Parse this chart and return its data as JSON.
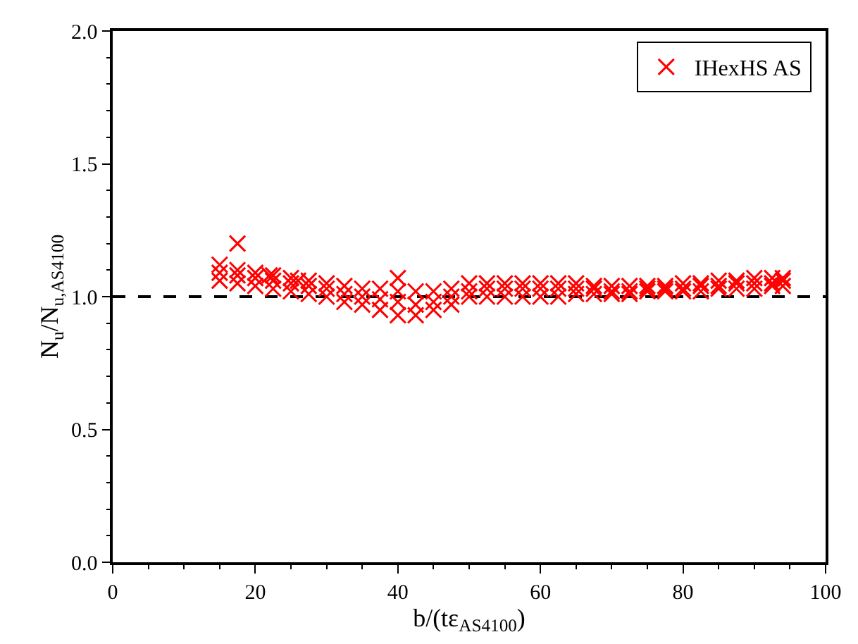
{
  "chart_data": {
    "type": "scatter",
    "xlabel": "b/(tε$_{AS4100}$)",
    "ylabel": "N$_{u}$/N$_{u,AS4100}$",
    "xlim": [
      0,
      100
    ],
    "xticks": [
      0,
      20,
      40,
      60,
      80,
      100
    ],
    "ylim": [
      0,
      2
    ],
    "yticks": [
      {
        "value": 0,
        "label": "0.0"
      },
      {
        "value": 0.5,
        "label": "0.5"
      },
      {
        "value": 1,
        "label": "1.0"
      },
      {
        "value": 1.5,
        "label": "1.5"
      },
      {
        "value": 2,
        "label": "2.0"
      }
    ],
    "grid": false,
    "legend": "top right",
    "marker": "cross",
    "ref_lines": [
      {
        "axis": "y",
        "value": 1,
        "color": "#000000",
        "line_style": "dashed"
      }
    ],
    "series": [
      {
        "name": "IHexHS AS",
        "color": "#ff0000",
        "x": [
          15,
          17.5,
          20,
          22.5,
          25,
          27.5,
          30,
          32.5,
          35,
          37.5,
          40,
          42.5,
          45,
          47.5,
          50,
          52.5,
          55,
          57.5,
          60,
          62.5,
          65,
          67.5,
          70,
          72.5,
          75,
          77.5,
          80,
          82.5,
          85,
          87.5,
          90,
          92.5,
          94,
          15,
          17.5,
          20,
          22.5,
          25,
          27.5,
          30,
          32.5,
          35,
          37.5,
          40,
          42.5,
          45,
          47.5,
          50,
          52.5,
          55,
          57.5,
          60,
          62.5,
          65,
          67.5,
          70,
          72.5,
          75,
          77.5,
          80,
          82.5,
          85,
          87.5,
          90,
          92.5,
          94,
          15,
          17.5,
          20,
          22.5,
          25,
          27.5,
          30,
          32.5,
          35,
          37.5,
          40,
          42.5,
          45,
          47.5,
          50,
          52.5,
          55,
          57.5,
          60,
          62.5,
          65,
          67.5,
          70,
          72.5,
          75,
          77.5,
          80,
          82.5,
          85,
          87.5,
          90,
          92.5,
          94,
          17.5,
          40,
          22,
          26
        ],
        "values": [
          1.12,
          1.1,
          1.09,
          1.08,
          1.07,
          1.06,
          1.05,
          1.04,
          1.03,
          1.03,
          1.02,
          1.02,
          1.02,
          1.03,
          1.05,
          1.05,
          1.05,
          1.05,
          1.05,
          1.05,
          1.05,
          1.04,
          1.04,
          1.04,
          1.04,
          1.04,
          1.05,
          1.05,
          1.06,
          1.06,
          1.07,
          1.07,
          1.07,
          1.06,
          1.05,
          1.04,
          1.03,
          1.02,
          1.01,
          1.0,
          0.98,
          0.97,
          0.95,
          0.93,
          0.93,
          0.95,
          0.97,
          1.0,
          1.0,
          1.0,
          1.0,
          1.0,
          1.0,
          1.01,
          1.01,
          1.01,
          1.01,
          1.02,
          1.02,
          1.02,
          1.02,
          1.03,
          1.03,
          1.03,
          1.04,
          1.04,
          1.09,
          1.08,
          1.07,
          1.06,
          1.05,
          1.04,
          1.03,
          1.01,
          1.0,
          0.99,
          0.98,
          0.97,
          0.98,
          1.0,
          1.02,
          1.03,
          1.03,
          1.03,
          1.03,
          1.03,
          1.03,
          1.03,
          1.02,
          1.02,
          1.03,
          1.03,
          1.03,
          1.04,
          1.04,
          1.05,
          1.05,
          1.05,
          1.06,
          1.2,
          1.07,
          1.08,
          1.06
        ]
      }
    ]
  }
}
